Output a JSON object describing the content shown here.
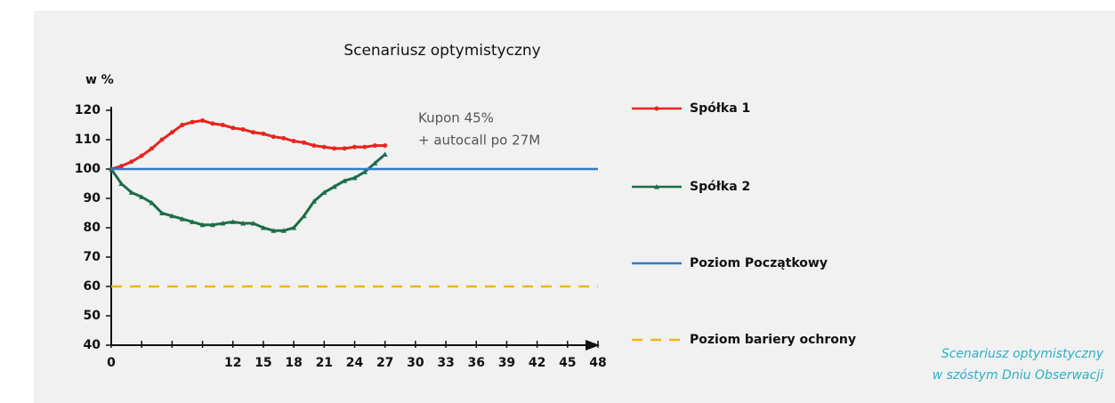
{
  "chart_data": {
    "type": "line",
    "title": "Scenariusz optymistyczny",
    "ylabel": "w %",
    "annotation": [
      "Kupon 45%",
      "+ autocall po 27M"
    ],
    "caption": [
      "Scenariusz optymistyczny",
      "w szóstym Dniu Obserwacji"
    ],
    "xlim": [
      0,
      48
    ],
    "ylim": [
      40,
      120
    ],
    "xticks": [
      0,
      12,
      15,
      18,
      21,
      24,
      27,
      30,
      33,
      36,
      39,
      42,
      45,
      48
    ],
    "xminor_ticks": [
      3,
      6,
      9
    ],
    "yticks": [
      40,
      50,
      60,
      70,
      80,
      90,
      100,
      110,
      120
    ],
    "series": [
      {
        "name": "Spółka 1",
        "color": "#e8241f",
        "marker": "circle",
        "x": [
          0,
          1,
          2,
          3,
          4,
          5,
          6,
          7,
          8,
          9,
          10,
          11,
          12,
          13,
          14,
          15,
          16,
          17,
          18,
          19,
          20,
          21,
          22,
          23,
          24,
          25,
          26,
          27
        ],
        "values": [
          100,
          101,
          102.5,
          104.5,
          107,
          110,
          112.5,
          115,
          116,
          116.5,
          115.5,
          115,
          114,
          113.5,
          112.5,
          112,
          111,
          110.5,
          109.5,
          109,
          108,
          107.5,
          107,
          107,
          107.5,
          107.5,
          108,
          108
        ]
      },
      {
        "name": "Spółka 2",
        "color": "#1b6e48",
        "marker": "triangle",
        "x": [
          0,
          1,
          2,
          3,
          4,
          5,
          6,
          7,
          8,
          9,
          10,
          11,
          12,
          13,
          14,
          15,
          16,
          17,
          18,
          19,
          20,
          21,
          22,
          23,
          24,
          25,
          26,
          27
        ],
        "values": [
          100,
          95,
          92,
          90.5,
          88.5,
          85,
          84,
          83,
          82,
          81,
          81,
          81.5,
          82,
          81.5,
          81.5,
          80,
          79,
          79,
          80,
          84,
          89,
          92,
          94,
          96,
          97,
          99,
          102,
          105
        ]
      },
      {
        "name": "Poziom Początkowy",
        "color": "#2e7cc4",
        "x": [
          0,
          48
        ],
        "values": [
          100,
          100
        ]
      },
      {
        "name": "Poziom bariery ochrony",
        "color": "#f0b51c",
        "dashed": true,
        "x": [
          0,
          48
        ],
        "values": [
          60,
          60
        ]
      }
    ]
  }
}
